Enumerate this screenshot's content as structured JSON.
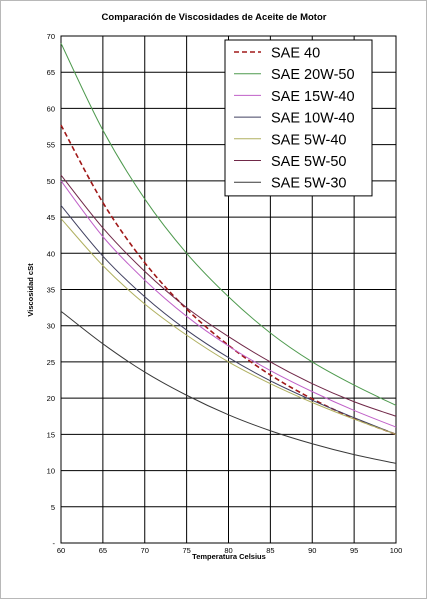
{
  "chart_data": {
    "type": "line",
    "title": "Comparación de Viscosidades de Aceite de Motor",
    "xlabel": "Temperatura Celsius",
    "ylabel": "Viscosidad cSt",
    "xlim": [
      60,
      100
    ],
    "ylim": [
      0,
      70
    ],
    "x_ticks": [
      "60",
      "65",
      "70",
      "75",
      "80",
      "85",
      "90",
      "95",
      "100"
    ],
    "y_ticks": [
      "-",
      "5",
      "10",
      "15",
      "20",
      "25",
      "30",
      "35",
      "40",
      "45",
      "50",
      "55",
      "60",
      "65",
      "70"
    ],
    "grid": true,
    "legend_position": "top-right",
    "x": [
      60,
      65,
      70,
      75,
      80,
      85,
      90,
      95,
      100
    ],
    "series": [
      {
        "name": "SAE 40",
        "color": "#a01818",
        "dashed": true,
        "values": [
          57.7,
          47.0,
          38.7,
          32.3,
          27.3,
          23.2,
          19.9,
          17.2,
          15.0
        ]
      },
      {
        "name": "SAE 20W-50",
        "color": "#4e9a4e",
        "dashed": false,
        "values": [
          69.0,
          57.0,
          47.5,
          40.0,
          34.0,
          29.0,
          25.0,
          21.8,
          19.0
        ]
      },
      {
        "name": "SAE 15W-40",
        "color": "#c060c8",
        "dashed": false,
        "values": [
          50.0,
          42.3,
          36.3,
          31.3,
          27.2,
          23.8,
          20.9,
          18.3,
          16.0
        ]
      },
      {
        "name": "SAE 10W-40",
        "color": "#404060",
        "dashed": false,
        "values": [
          46.6,
          39.6,
          34.0,
          29.4,
          25.6,
          22.4,
          19.7,
          17.3,
          15.0
        ]
      },
      {
        "name": "SAE 5W-40",
        "color": "#b0b060",
        "dashed": false,
        "values": [
          44.8,
          38.3,
          33.0,
          28.7,
          25.0,
          22.0,
          19.4,
          17.1,
          15.0
        ]
      },
      {
        "name": "SAE 5W-50",
        "color": "#702848",
        "dashed": false,
        "values": [
          50.8,
          43.5,
          37.5,
          32.5,
          28.5,
          25.0,
          22.0,
          19.5,
          17.5
        ]
      },
      {
        "name": "SAE 5W-30",
        "color": "#383838",
        "dashed": false,
        "values": [
          32.0,
          27.5,
          23.6,
          20.4,
          17.7,
          15.5,
          13.7,
          12.2,
          11.0
        ]
      }
    ]
  }
}
